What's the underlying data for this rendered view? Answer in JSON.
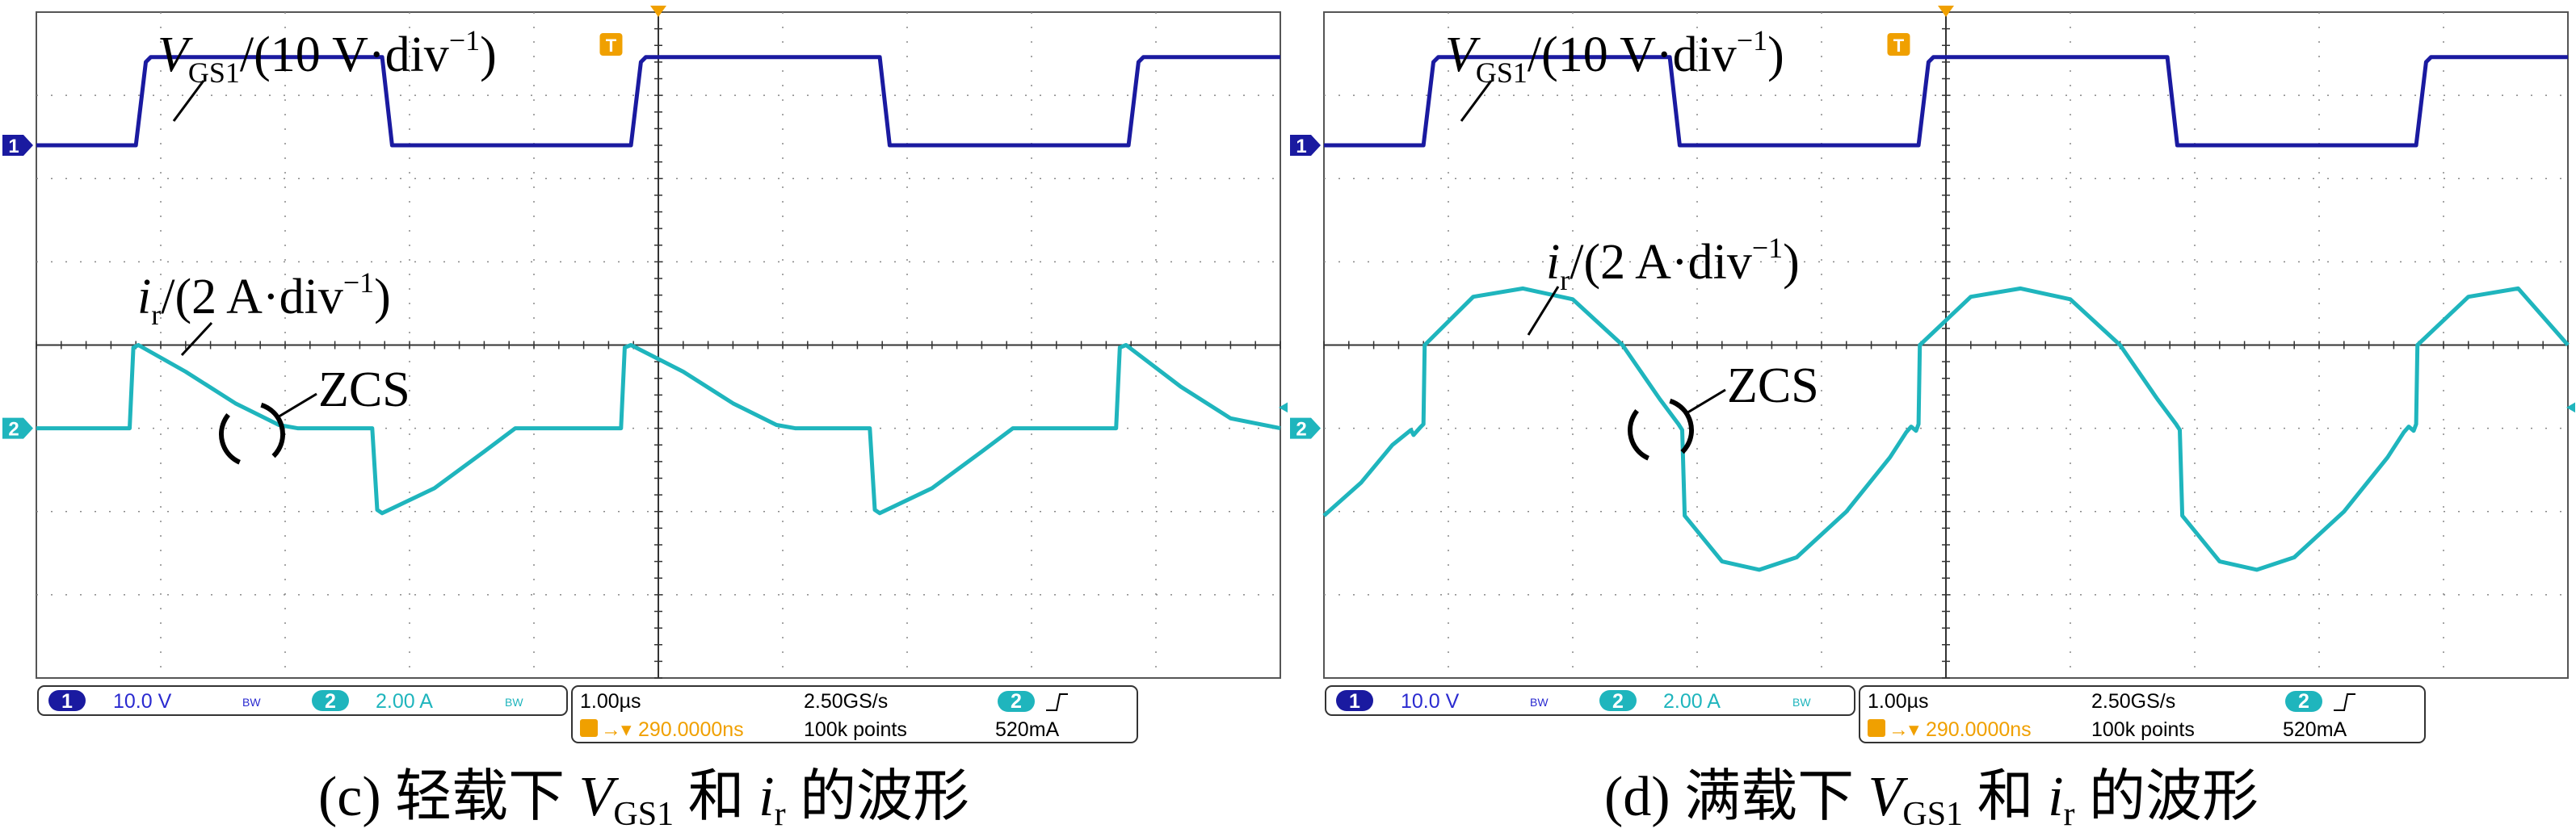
{
  "chart_data": [
    {
      "type": "line",
      "caption": {
        "prefix": "(c) 轻载下 ",
        "v": "V",
        "v_sub": "GS1",
        "mid": " 和 ",
        "i": "i",
        "i_sub": "r",
        "suffix": " 的波形"
      },
      "annotations": {
        "vgs_label": {
          "sym": "V",
          "sub": "GS1",
          "rest": "/(10 V·div",
          "exp": "−1",
          "close": ")"
        },
        "ir_label": {
          "sym": "i",
          "sub": "r",
          "rest": "/(2 A·div",
          "exp": "−1",
          "close": ")"
        },
        "zcs": "ZCS"
      },
      "status": {
        "ch1_num": "1",
        "ch1_scale": "10.0 V",
        "ch2_num": "2",
        "ch2_scale": "2.00 A",
        "bw": "BW",
        "time_scale": "1.00µs",
        "trigger_pos": "290.0000ns",
        "sample_rate": "2.50GS/s",
        "record": "100k points",
        "trig_ch": "2",
        "trig_level": "520mA"
      },
      "markers": {
        "ch1": "1",
        "ch2": "2",
        "trigger": "T"
      },
      "x_unit": "div",
      "xlim": [
        0,
        10
      ],
      "series": [
        {
          "channel": 1,
          "unit": "V",
          "color": "#1a1aa0",
          "ref_div": 1.6,
          "x": [
            0,
            0.8,
            0.88,
            0.92,
            2.78,
            2.86,
            2.9,
            4.78,
            4.86,
            4.9,
            6.78,
            6.86,
            6.9,
            8.78,
            8.86,
            8.9,
            10
          ],
          "y": [
            0,
            0,
            1.0,
            1.06,
            1.06,
            0,
            0,
            0,
            1.0,
            1.06,
            1.06,
            0,
            0,
            0,
            1.0,
            1.06,
            1.06
          ]
        },
        {
          "channel": 2,
          "unit": "A",
          "color": "#1fb5bd",
          "ref_div": 5.0,
          "x": [
            0,
            0.75,
            0.78,
            0.82,
            1.2,
            1.6,
            1.95,
            2.1,
            2.7,
            2.74,
            2.78,
            3.2,
            3.6,
            3.85,
            4.7,
            4.73,
            4.78,
            5.2,
            5.6,
            5.95,
            6.1,
            6.7,
            6.74,
            6.78,
            7.2,
            7.6,
            7.85,
            8.68,
            8.71,
            8.76,
            9.2,
            9.6,
            10
          ],
          "y": [
            0,
            0,
            0.97,
            1.0,
            0.68,
            0.3,
            0.04,
            0,
            0,
            -0.98,
            -1.02,
            -0.72,
            -0.28,
            0,
            0,
            0.97,
            1.0,
            0.68,
            0.3,
            0.04,
            0,
            0,
            -0.98,
            -1.02,
            -0.72,
            -0.28,
            0,
            0,
            0.97,
            1.0,
            0.5,
            0.12,
            0
          ]
        }
      ]
    },
    {
      "type": "line",
      "caption": {
        "prefix": "(d) 满载下 ",
        "v": "V",
        "v_sub": "GS1",
        "mid": " 和 ",
        "i": "i",
        "i_sub": "r",
        "suffix": " 的波形"
      },
      "annotations": {
        "vgs_label": {
          "sym": "V",
          "sub": "GS1",
          "rest": "/(10 V·div",
          "exp": "−1",
          "close": ")"
        },
        "ir_label": {
          "sym": "i",
          "sub": "r",
          "rest": "/(2 A·div",
          "exp": "−1",
          "close": ")"
        },
        "zcs": "ZCS"
      },
      "status": {
        "ch1_num": "1",
        "ch1_scale": "10.0 V",
        "ch2_num": "2",
        "ch2_scale": "2.00 A",
        "bw": "BW",
        "time_scale": "1.00µs",
        "trigger_pos": "290.0000ns",
        "sample_rate": "2.50GS/s",
        "record": "100k points",
        "trig_ch": "2",
        "trig_level": "520mA"
      },
      "markers": {
        "ch1": "1",
        "ch2": "2",
        "trigger": "T"
      },
      "x_unit": "div",
      "xlim": [
        0,
        10
      ],
      "series": [
        {
          "channel": 1,
          "unit": "V",
          "color": "#1a1aa0",
          "ref_div": 1.6,
          "x": [
            0,
            0.8,
            0.88,
            0.92,
            2.78,
            2.86,
            2.9,
            4.78,
            4.86,
            4.9,
            6.78,
            6.86,
            6.9,
            8.78,
            8.86,
            8.9,
            10
          ],
          "y": [
            0,
            0,
            1.0,
            1.06,
            1.06,
            0,
            0,
            0,
            1.0,
            1.06,
            1.06,
            0,
            0,
            0,
            1.0,
            1.06,
            1.06
          ]
        },
        {
          "channel": 2,
          "unit": "A",
          "color": "#1fb5bd",
          "ref_div": 5.0,
          "x": [
            0,
            0.3,
            0.55,
            0.7,
            0.72,
            0.78,
            0.8,
            0.81,
            1.2,
            1.6,
            2.0,
            2.4,
            2.7,
            2.85,
            2.88,
            2.9,
            3.2,
            3.5,
            3.8,
            4.2,
            4.55,
            4.68,
            4.72,
            4.76,
            4.78,
            4.79,
            5.2,
            5.6,
            6.0,
            6.4,
            6.7,
            6.85,
            6.88,
            6.9,
            7.2,
            7.5,
            7.8,
            8.2,
            8.55,
            8.68,
            8.72,
            8.76,
            8.78,
            8.79,
            9.2,
            9.6,
            10
          ],
          "y": [
            -1.05,
            -0.65,
            -0.2,
            -0.02,
            -0.08,
            0.02,
            0.05,
            1.0,
            1.58,
            1.68,
            1.55,
            1.0,
            0.35,
            0.05,
            -0.02,
            -1.05,
            -1.6,
            -1.7,
            -1.55,
            -1.0,
            -0.35,
            -0.05,
            0.02,
            -0.03,
            0.05,
            1.0,
            1.58,
            1.68,
            1.55,
            1.0,
            0.35,
            0.05,
            -0.02,
            -1.05,
            -1.6,
            -1.7,
            -1.55,
            -1.0,
            -0.35,
            -0.05,
            0.02,
            -0.03,
            0.05,
            1.0,
            1.58,
            1.68,
            1.0
          ]
        }
      ]
    }
  ]
}
